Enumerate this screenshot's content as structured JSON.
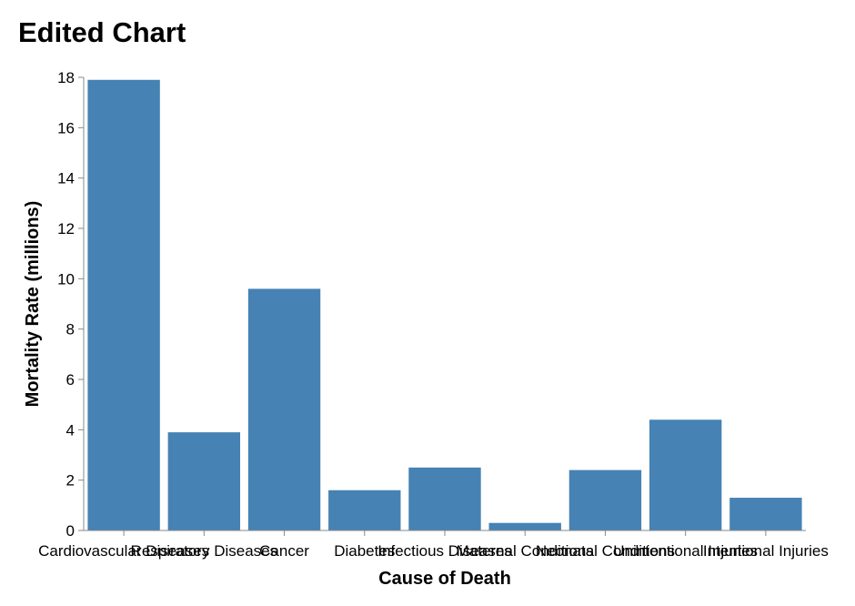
{
  "chart_data": {
    "type": "bar",
    "title": "Edited Chart",
    "xlabel": "Cause of Death",
    "ylabel": "Mortality Rate (millions)",
    "categories": [
      "Cardiovascular Diseases",
      "Respiratory Diseases",
      "Cancer",
      "Diabetes",
      "Infectious Diseases",
      "Maternal Conditions",
      "Neonatal Conditions",
      "Unintentional Injuries",
      "Intentional Injuries"
    ],
    "values": [
      17.9,
      3.9,
      9.6,
      1.6,
      2.5,
      0.3,
      2.4,
      4.4,
      1.3
    ],
    "ylim": [
      0,
      18
    ],
    "yticks": [
      0,
      2,
      4,
      6,
      8,
      10,
      12,
      14,
      16,
      18
    ],
    "grid": false,
    "bar_color": "#4682b4"
  }
}
